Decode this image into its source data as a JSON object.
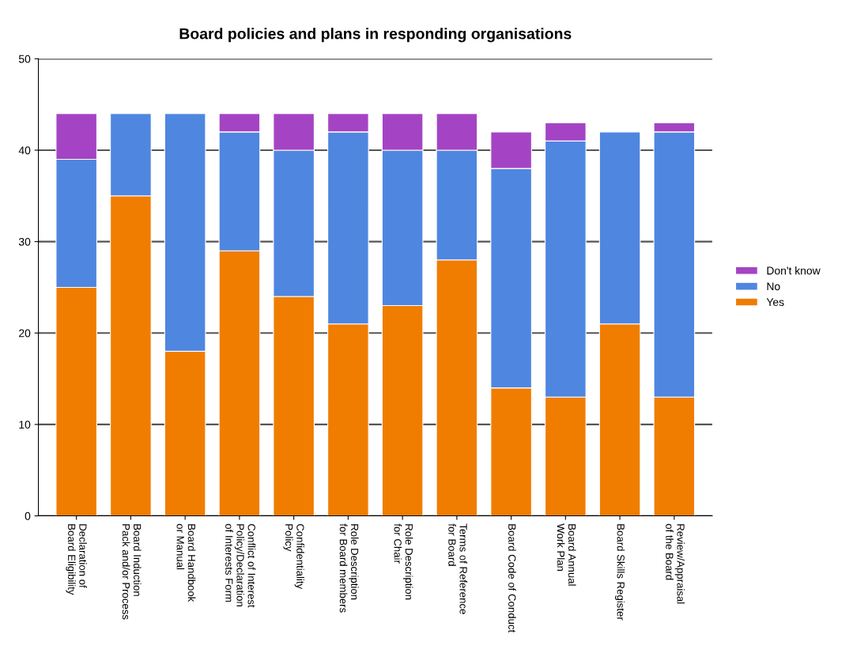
{
  "chart_data": {
    "type": "bar",
    "title": "Board policies and plans in responding organisations",
    "stacked": true,
    "categories": [
      "Declaration of\nBoard Eligibility",
      "Board Induction\nPack and/or Process",
      "Board Handbook\nor Manual",
      "Conflict of Interest\nPolicy/Declaration\nof Interests Form",
      "Confidentiality\nPolicy",
      "Role Description\nfor Board members",
      "Role Description\nfor Chair",
      "Terms of Reference\nfor Board",
      "Board Code of Conduct",
      "Board Annual\nWork Plan",
      "Board Skills Register",
      "Review/Appraisal\nof the Board"
    ],
    "series": [
      {
        "name": "Yes",
        "color": "#f07d00",
        "values": [
          25,
          35,
          18,
          29,
          24,
          21,
          23,
          28,
          14,
          13,
          21,
          13
        ]
      },
      {
        "name": "No",
        "color": "#4f86e0",
        "values": [
          14,
          9,
          26,
          13,
          16,
          21,
          17,
          12,
          24,
          28,
          21,
          29
        ]
      },
      {
        "name": "Don't know",
        "color": "#a444c4",
        "values": [
          5,
          0,
          0,
          2,
          4,
          2,
          4,
          4,
          4,
          2,
          0,
          1
        ]
      }
    ],
    "ylim": [
      0,
      50
    ],
    "yticks": [
      0,
      10,
      20,
      30,
      40,
      50
    ],
    "grid": "y",
    "legend": "right"
  }
}
